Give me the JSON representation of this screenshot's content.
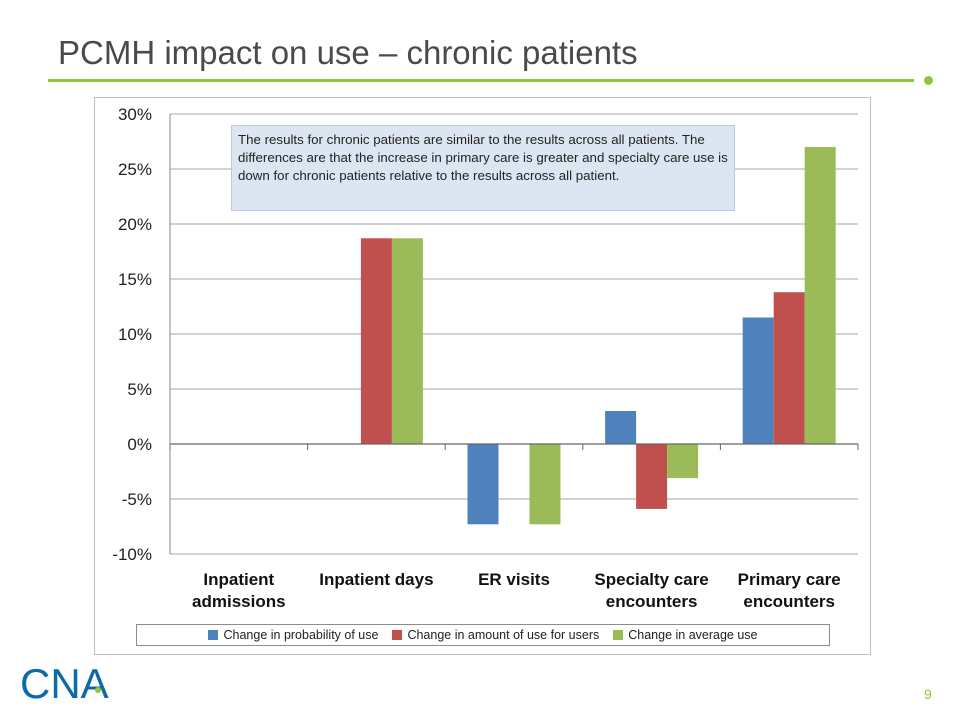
{
  "slide": {
    "title": "PCMH impact on use – chronic patients",
    "page_number": "9",
    "logo_text": "CNA",
    "accent_color": "#8dc63f"
  },
  "annotation": {
    "text": "The results for chronic patients are similar to the results across all patients. The differences are that the increase in primary care is greater and specialty care use is down for chronic patients relative to the results across all patient."
  },
  "chart_data": {
    "type": "bar",
    "title": "",
    "xlabel": "",
    "ylabel": "",
    "categories": [
      [
        "Inpatient",
        "admissions"
      ],
      [
        "Inpatient days"
      ],
      [
        "ER visits"
      ],
      [
        "Specialty care",
        "encounters"
      ],
      [
        "Primary care",
        "encounters"
      ]
    ],
    "series": [
      {
        "name": "Change in probability of use",
        "color": "#4f81bd",
        "values": [
          0,
          0,
          -7.3,
          3.0,
          11.5
        ]
      },
      {
        "name": "Change in amount of use for users",
        "color": "#c0504d",
        "values": [
          0,
          18.7,
          0,
          -5.9,
          13.8
        ]
      },
      {
        "name": "Change in average use",
        "color": "#9bbb59",
        "values": [
          0,
          18.7,
          -7.3,
          -3.1,
          27.0
        ]
      }
    ],
    "ylim": [
      -10,
      30
    ],
    "yticks": [
      30,
      25,
      20,
      15,
      10,
      5,
      0,
      -5,
      -10
    ],
    "ytick_labels": [
      "30%",
      "25%",
      "20%",
      "15%",
      "10%",
      "5%",
      "0%",
      "-5%",
      "-10%"
    ],
    "grid": true,
    "legend_position": "bottom"
  }
}
